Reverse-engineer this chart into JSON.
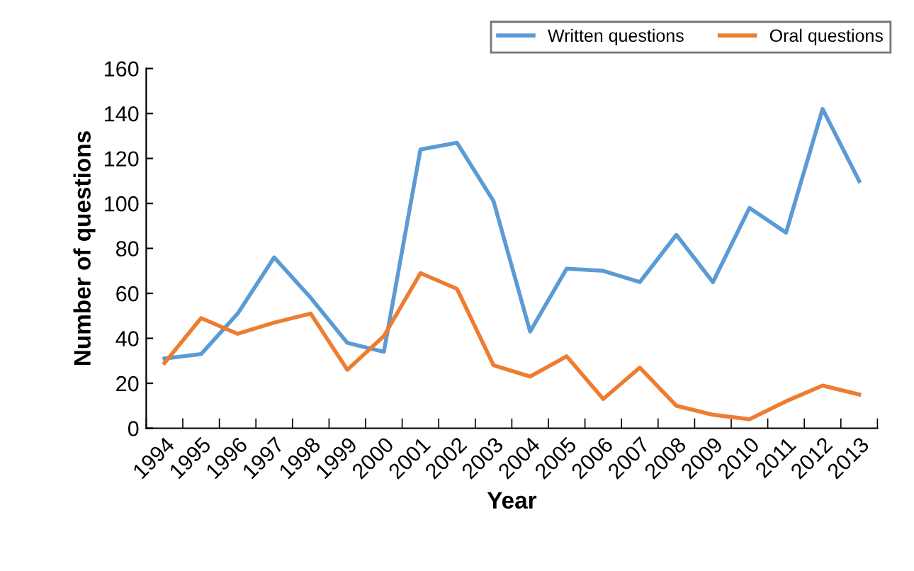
{
  "chart_data": {
    "type": "line",
    "xlabel": "Year",
    "ylabel": "Number of questions",
    "categories": [
      "1994",
      "1995",
      "1996",
      "1997",
      "1998",
      "1999",
      "2000",
      "2001",
      "2002",
      "2003",
      "2004",
      "2005",
      "2006",
      "2007",
      "2008",
      "2009",
      "2010",
      "2011",
      "2012",
      "2013"
    ],
    "series": [
      {
        "name": "Written questions",
        "color": "#5b9bd5",
        "values": [
          31,
          33,
          51,
          76,
          58,
          38,
          34,
          124,
          127,
          101,
          43,
          71,
          70,
          65,
          86,
          65,
          98,
          87,
          142,
          110
        ]
      },
      {
        "name": "Oral questions",
        "color": "#ed7d31",
        "values": [
          29,
          49,
          42,
          47,
          51,
          26,
          41,
          69,
          62,
          28,
          23,
          32,
          13,
          27,
          10,
          6,
          4,
          12,
          19,
          15
        ]
      }
    ],
    "ylim": [
      0,
      160
    ],
    "yticks": [
      0,
      20,
      40,
      60,
      80,
      100,
      120,
      140,
      160
    ],
    "grid": false,
    "legend": "top right",
    "marker": "none",
    "line_style": "solid"
  }
}
